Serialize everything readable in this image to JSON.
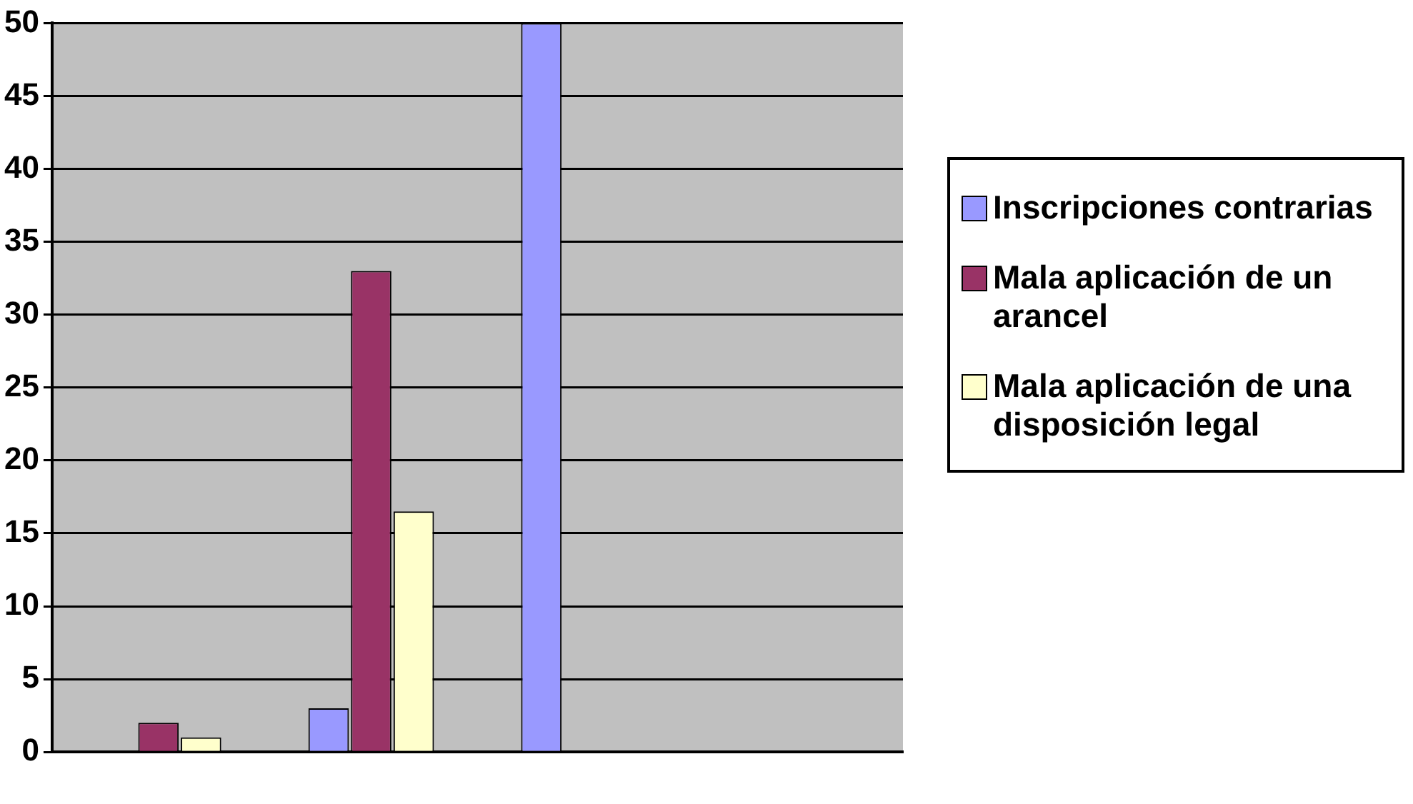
{
  "chart_data": {
    "type": "bar",
    "categories": [
      null,
      null,
      null,
      null
    ],
    "series": [
      {
        "name": "Inscripciones contrarias",
        "color": "#9999ff",
        "values": [
          null,
          3,
          50,
          null
        ]
      },
      {
        "name": "Mala aplicación de un arancel",
        "color": "#993366",
        "values": [
          2,
          33,
          null,
          null
        ]
      },
      {
        "name": "Mala aplicación de una disposición legal",
        "color": "#ffffcc",
        "values": [
          1,
          16.5,
          null,
          null
        ]
      }
    ],
    "ylim": [
      0,
      50
    ],
    "yticks": [
      0,
      5,
      10,
      15,
      20,
      25,
      30,
      35,
      40,
      45,
      50
    ],
    "grid": "y",
    "legend": "right"
  }
}
